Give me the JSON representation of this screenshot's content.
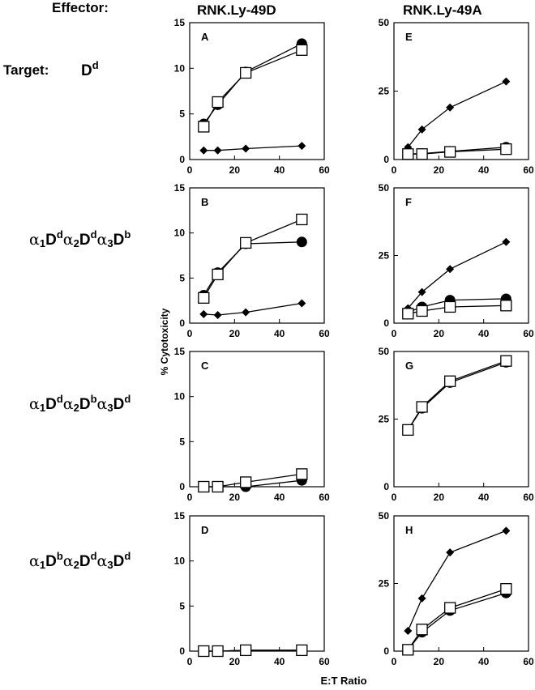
{
  "labels": {
    "effector": "Effector:",
    "target": "Target:",
    "effector_left": "RNK.Ly-49D",
    "effector_right": "RNK.Ly-49A",
    "ylabel": "% Cytotoxicity",
    "xlabel": "E:T Ratio"
  },
  "targets": [
    {
      "parts": [
        {
          "t": "D",
          "k": "n"
        },
        {
          "t": "d",
          "k": "sup"
        }
      ]
    },
    {
      "parts": [
        {
          "t": "α",
          "k": "g"
        },
        {
          "t": "1",
          "k": "sub"
        },
        {
          "t": "D",
          "k": "n"
        },
        {
          "t": "d",
          "k": "sup"
        },
        {
          "t": "α",
          "k": "g"
        },
        {
          "t": "2",
          "k": "sub"
        },
        {
          "t": "D",
          "k": "n"
        },
        {
          "t": "d",
          "k": "sup"
        },
        {
          "t": "α",
          "k": "g"
        },
        {
          "t": "3",
          "k": "sub"
        },
        {
          "t": "D",
          "k": "n"
        },
        {
          "t": "b",
          "k": "sup"
        }
      ]
    },
    {
      "parts": [
        {
          "t": "α",
          "k": "g"
        },
        {
          "t": "1",
          "k": "sub"
        },
        {
          "t": "D",
          "k": "n"
        },
        {
          "t": "d",
          "k": "sup"
        },
        {
          "t": "α",
          "k": "g"
        },
        {
          "t": "2",
          "k": "sub"
        },
        {
          "t": "D",
          "k": "n"
        },
        {
          "t": "b",
          "k": "sup"
        },
        {
          "t": "α",
          "k": "g"
        },
        {
          "t": "3",
          "k": "sub"
        },
        {
          "t": "D",
          "k": "n"
        },
        {
          "t": "d",
          "k": "sup"
        }
      ]
    },
    {
      "parts": [
        {
          "t": "α",
          "k": "g"
        },
        {
          "t": "1",
          "k": "sub"
        },
        {
          "t": "D",
          "k": "n"
        },
        {
          "t": "b",
          "k": "sup"
        },
        {
          "t": "α",
          "k": "g"
        },
        {
          "t": "2",
          "k": "sub"
        },
        {
          "t": "D",
          "k": "n"
        },
        {
          "t": "d",
          "k": "sup"
        },
        {
          "t": "α",
          "k": "g"
        },
        {
          "t": "3",
          "k": "sub"
        },
        {
          "t": "D",
          "k": "n"
        },
        {
          "t": "d",
          "k": "sup"
        }
      ]
    }
  ],
  "chart_data": [
    {
      "type": "line",
      "panel": "A",
      "xlim": [
        0,
        60
      ],
      "ylim": [
        0,
        15
      ],
      "xticks": [
        0,
        20,
        40,
        60
      ],
      "yticks": [
        0,
        5,
        10,
        15
      ],
      "series": [
        {
          "marker": "circle",
          "x": [
            6.25,
            12.5,
            25,
            50
          ],
          "y": [
            3.9,
            6.0,
            9.6,
            12.7
          ]
        },
        {
          "marker": "square",
          "x": [
            6.25,
            12.5,
            25,
            50
          ],
          "y": [
            3.6,
            6.3,
            9.5,
            12.0
          ]
        },
        {
          "marker": "diamond",
          "x": [
            6.25,
            12.5,
            25,
            50
          ],
          "y": [
            1.0,
            1.0,
            1.2,
            1.5
          ]
        }
      ]
    },
    {
      "type": "line",
      "panel": "E",
      "xlim": [
        0,
        60
      ],
      "ylim": [
        0,
        50
      ],
      "xticks": [
        0,
        20,
        40,
        60
      ],
      "yticks": [
        0,
        25,
        50
      ],
      "series": [
        {
          "marker": "diamond",
          "x": [
            6.25,
            12.5,
            25,
            50
          ],
          "y": [
            4.5,
            11.0,
            19.0,
            28.5
          ]
        },
        {
          "marker": "circle",
          "x": [
            6.25,
            12.5,
            25,
            50
          ],
          "y": [
            2.0,
            2.2,
            3.0,
            4.5
          ]
        },
        {
          "marker": "square",
          "x": [
            6.25,
            12.5,
            25,
            50
          ],
          "y": [
            2.0,
            2.0,
            2.8,
            3.8
          ]
        }
      ]
    },
    {
      "type": "line",
      "panel": "B",
      "xlim": [
        0,
        60
      ],
      "ylim": [
        0,
        15
      ],
      "xticks": [
        0,
        20,
        40,
        60
      ],
      "yticks": [
        0,
        5,
        10,
        15
      ],
      "series": [
        {
          "marker": "circle",
          "x": [
            6.25,
            12.5,
            25,
            50
          ],
          "y": [
            3.1,
            5.6,
            8.8,
            9.0
          ]
        },
        {
          "marker": "square",
          "x": [
            6.25,
            12.5,
            25,
            50
          ],
          "y": [
            2.8,
            5.4,
            8.9,
            11.5
          ]
        },
        {
          "marker": "diamond",
          "x": [
            6.25,
            12.5,
            25,
            50
          ],
          "y": [
            1.0,
            0.9,
            1.2,
            2.2
          ]
        }
      ]
    },
    {
      "type": "line",
      "panel": "F",
      "xlim": [
        0,
        60
      ],
      "ylim": [
        0,
        50
      ],
      "xticks": [
        0,
        20,
        40,
        60
      ],
      "yticks": [
        0,
        25,
        50
      ],
      "series": [
        {
          "marker": "diamond",
          "x": [
            6.25,
            12.5,
            25,
            50
          ],
          "y": [
            5.5,
            11.5,
            20.0,
            30.0
          ]
        },
        {
          "marker": "circle",
          "x": [
            6.25,
            12.5,
            25,
            50
          ],
          "y": [
            4.0,
            6.0,
            8.5,
            9.0
          ]
        },
        {
          "marker": "square",
          "x": [
            6.25,
            12.5,
            25,
            50
          ],
          "y": [
            3.5,
            4.5,
            6.0,
            6.5
          ]
        }
      ]
    },
    {
      "type": "line",
      "panel": "C",
      "xlim": [
        0,
        60
      ],
      "ylim": [
        0,
        15
      ],
      "xticks": [
        0,
        20,
        40,
        60
      ],
      "yticks": [
        0,
        5,
        10,
        15
      ],
      "series": [
        {
          "marker": "circle",
          "x": [
            6.25,
            12.5,
            25,
            50
          ],
          "y": [
            0.0,
            0.0,
            0.0,
            0.7
          ]
        },
        {
          "marker": "square",
          "x": [
            6.25,
            12.5,
            25,
            50
          ],
          "y": [
            0.0,
            0.0,
            0.5,
            1.4
          ]
        }
      ]
    },
    {
      "type": "line",
      "panel": "G",
      "xlim": [
        0,
        60
      ],
      "ylim": [
        0,
        50
      ],
      "xticks": [
        0,
        20,
        40,
        60
      ],
      "yticks": [
        0,
        25,
        50
      ],
      "series": [
        {
          "marker": "circle",
          "x": [
            6.25,
            12.5,
            25,
            50
          ],
          "y": [
            21.0,
            29.0,
            38.5,
            46.0
          ]
        },
        {
          "marker": "square",
          "x": [
            6.25,
            12.5,
            25,
            50
          ],
          "y": [
            21.0,
            29.5,
            39.0,
            46.5
          ]
        }
      ]
    },
    {
      "type": "line",
      "panel": "D",
      "xlim": [
        0,
        60
      ],
      "ylim": [
        0,
        15
      ],
      "xticks": [
        0,
        20,
        40,
        60
      ],
      "yticks": [
        0,
        5,
        10,
        15
      ],
      "series": [
        {
          "marker": "circle",
          "x": [
            6.25,
            12.5,
            25,
            50
          ],
          "y": [
            0.0,
            0.0,
            0.1,
            0.1
          ]
        },
        {
          "marker": "square",
          "x": [
            6.25,
            12.5,
            25,
            50
          ],
          "y": [
            0.0,
            0.0,
            0.1,
            0.1
          ]
        }
      ]
    },
    {
      "type": "line",
      "panel": "H",
      "xlim": [
        0,
        60
      ],
      "ylim": [
        0,
        50
      ],
      "xticks": [
        0,
        20,
        40,
        60
      ],
      "yticks": [
        0,
        25,
        50
      ],
      "series": [
        {
          "marker": "diamond",
          "x": [
            6.25,
            12.5,
            25,
            50
          ],
          "y": [
            7.5,
            19.5,
            36.5,
            44.5
          ]
        },
        {
          "marker": "circle",
          "x": [
            6.25,
            12.5,
            25,
            50
          ],
          "y": [
            0.5,
            7.0,
            15.0,
            21.5
          ]
        },
        {
          "marker": "square",
          "x": [
            6.25,
            12.5,
            25,
            50
          ],
          "y": [
            0.5,
            8.0,
            16.0,
            23.0
          ]
        }
      ]
    }
  ]
}
